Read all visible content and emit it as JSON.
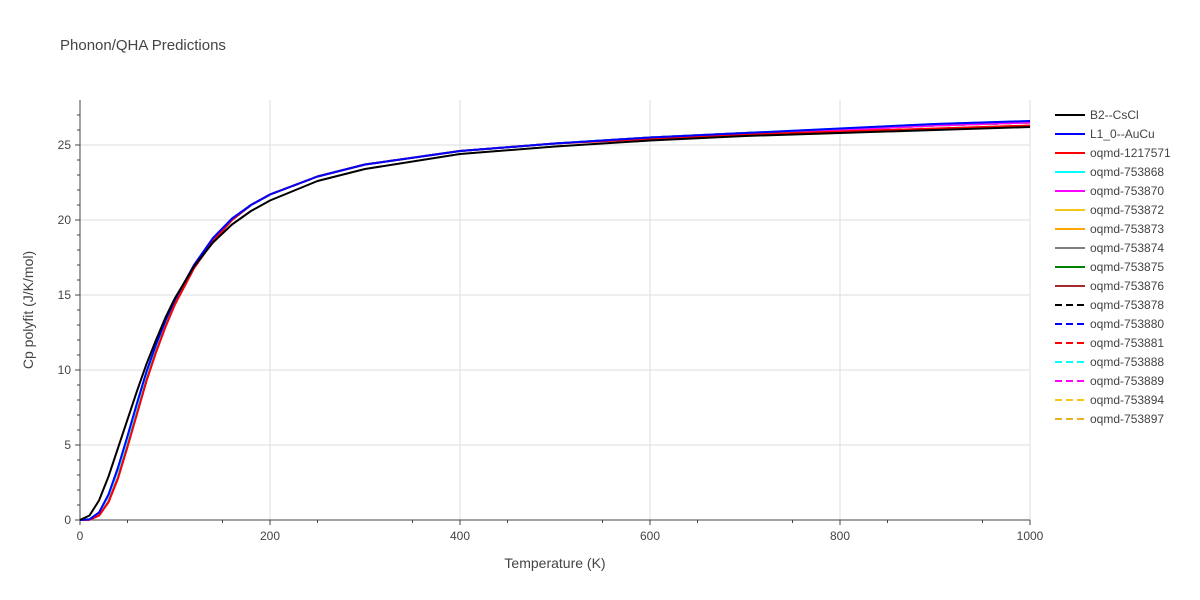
{
  "chart_data": {
    "type": "line",
    "title": "Phonon/QHA Predictions",
    "xlabel": "Temperature (K)",
    "ylabel": "Cp polyfit (J/K/mol)",
    "xlim": [
      0,
      1000
    ],
    "ylim": [
      0,
      28
    ],
    "x_ticks": [
      0,
      200,
      400,
      600,
      800,
      1000
    ],
    "y_ticks": [
      0,
      5,
      10,
      15,
      20,
      25
    ],
    "grid": true,
    "legend_position": "right",
    "x": [
      0,
      10,
      20,
      30,
      40,
      50,
      60,
      70,
      80,
      90,
      100,
      120,
      140,
      160,
      180,
      200,
      250,
      300,
      400,
      500,
      600,
      700,
      800,
      900,
      1000
    ],
    "series": [
      {
        "name": "B2--CsCl",
        "color": "#000000",
        "dash": "solid",
        "values": [
          0,
          0.3,
          1.3,
          2.9,
          4.8,
          6.7,
          8.6,
          10.4,
          12.0,
          13.5,
          14.8,
          16.9,
          18.5,
          19.7,
          20.6,
          21.3,
          22.6,
          23.4,
          24.4,
          24.9,
          25.3,
          25.6,
          25.8,
          26.0,
          26.2
        ]
      },
      {
        "name": "L1_0--AuCu",
        "color": "#0000ff",
        "dash": "solid",
        "values": [
          0,
          0.05,
          0.5,
          1.7,
          3.5,
          5.6,
          7.8,
          9.9,
          11.7,
          13.3,
          14.7,
          17.0,
          18.8,
          20.1,
          21.0,
          21.7,
          22.9,
          23.7,
          24.6,
          25.1,
          25.5,
          25.8,
          26.1,
          26.4,
          26.6
        ]
      },
      {
        "name": "oqmd-1217571",
        "color": "#ff0000",
        "dash": "solid",
        "values": [
          0,
          0.02,
          0.3,
          1.2,
          2.8,
          4.9,
          7.1,
          9.3,
          11.2,
          12.9,
          14.4,
          16.8,
          18.6,
          20.0,
          21.0,
          21.7,
          22.9,
          23.7,
          24.6,
          25.1,
          25.4,
          25.7,
          25.9,
          26.1,
          26.3
        ]
      },
      {
        "name": "oqmd-753868",
        "color": "#00ffff",
        "dash": "solid",
        "values": [
          0,
          0.04,
          0.45,
          1.6,
          3.3,
          5.3,
          7.5,
          9.6,
          11.5,
          13.1,
          14.6,
          16.9,
          18.7,
          20.0,
          21.0,
          21.7,
          22.9,
          23.7,
          24.6,
          25.1,
          25.5,
          25.8,
          26.1,
          26.4,
          26.6
        ]
      },
      {
        "name": "oqmd-753870",
        "color": "#ff00ff",
        "dash": "solid",
        "values": [
          0,
          0.02,
          0.3,
          1.2,
          2.8,
          4.9,
          7.1,
          9.3,
          11.2,
          12.9,
          14.4,
          16.8,
          18.6,
          20.0,
          21.0,
          21.7,
          22.9,
          23.7,
          24.6,
          25.1,
          25.5,
          25.8,
          26.0,
          26.3,
          26.5
        ]
      },
      {
        "name": "oqmd-753872",
        "color": "#f5c518",
        "dash": "solid",
        "values": [
          0,
          0.02,
          0.3,
          1.2,
          2.8,
          4.9,
          7.1,
          9.3,
          11.2,
          12.9,
          14.4,
          16.8,
          18.6,
          20.0,
          21.0,
          21.7,
          22.9,
          23.7,
          24.6,
          25.1,
          25.5,
          25.8,
          26.0,
          26.3,
          26.5
        ]
      },
      {
        "name": "oqmd-753873",
        "color": "#ffa500",
        "dash": "solid",
        "values": [
          0,
          0.02,
          0.3,
          1.2,
          2.8,
          4.9,
          7.1,
          9.3,
          11.2,
          12.9,
          14.4,
          16.8,
          18.6,
          20.0,
          21.0,
          21.7,
          22.9,
          23.7,
          24.6,
          25.1,
          25.5,
          25.8,
          26.0,
          26.3,
          26.5
        ]
      },
      {
        "name": "oqmd-753874",
        "color": "#808080",
        "dash": "solid",
        "values": [
          0,
          0.02,
          0.3,
          1.2,
          2.8,
          4.9,
          7.1,
          9.3,
          11.2,
          12.9,
          14.4,
          16.8,
          18.6,
          20.0,
          21.0,
          21.7,
          22.9,
          23.7,
          24.6,
          25.1,
          25.5,
          25.8,
          26.0,
          26.3,
          26.5
        ]
      },
      {
        "name": "oqmd-753875",
        "color": "#008000",
        "dash": "solid",
        "values": [
          0,
          0.02,
          0.3,
          1.2,
          2.8,
          4.9,
          7.1,
          9.3,
          11.2,
          12.9,
          14.4,
          16.8,
          18.6,
          20.0,
          21.0,
          21.7,
          22.9,
          23.7,
          24.6,
          25.1,
          25.5,
          25.8,
          26.0,
          26.3,
          26.5
        ]
      },
      {
        "name": "oqmd-753876",
        "color": "#a52a2a",
        "dash": "solid",
        "values": [
          0,
          0.02,
          0.3,
          1.2,
          2.8,
          4.9,
          7.1,
          9.3,
          11.2,
          12.9,
          14.4,
          16.8,
          18.6,
          20.0,
          21.0,
          21.7,
          22.9,
          23.7,
          24.6,
          25.1,
          25.5,
          25.8,
          26.0,
          26.3,
          26.5
        ]
      },
      {
        "name": "oqmd-753878",
        "color": "#000000",
        "dash": "dash",
        "values": [
          0,
          0.02,
          0.3,
          1.2,
          2.8,
          4.9,
          7.1,
          9.3,
          11.2,
          12.9,
          14.4,
          16.8,
          18.6,
          20.0,
          21.0,
          21.7,
          22.9,
          23.7,
          24.6,
          25.1,
          25.5,
          25.8,
          26.0,
          26.3,
          26.5
        ]
      },
      {
        "name": "oqmd-753880",
        "color": "#0000ff",
        "dash": "dash",
        "values": [
          0,
          0.02,
          0.3,
          1.2,
          2.8,
          4.9,
          7.1,
          9.3,
          11.2,
          12.9,
          14.4,
          16.8,
          18.6,
          20.0,
          21.0,
          21.7,
          22.9,
          23.7,
          24.6,
          25.1,
          25.5,
          25.8,
          26.0,
          26.3,
          26.5
        ]
      },
      {
        "name": "oqmd-753881",
        "color": "#ff0000",
        "dash": "dash",
        "values": [
          0,
          0.02,
          0.3,
          1.2,
          2.8,
          4.9,
          7.1,
          9.3,
          11.2,
          12.9,
          14.4,
          16.8,
          18.6,
          20.0,
          21.0,
          21.7,
          22.9,
          23.7,
          24.6,
          25.1,
          25.5,
          25.8,
          26.0,
          26.3,
          26.5
        ]
      },
      {
        "name": "oqmd-753888",
        "color": "#00ffff",
        "dash": "dash",
        "values": [
          0,
          0.02,
          0.3,
          1.2,
          2.8,
          4.9,
          7.1,
          9.3,
          11.2,
          12.9,
          14.4,
          16.8,
          18.6,
          20.0,
          21.0,
          21.7,
          22.9,
          23.7,
          24.6,
          25.1,
          25.5,
          25.8,
          26.0,
          26.3,
          26.5
        ]
      },
      {
        "name": "oqmd-753889",
        "color": "#ff00ff",
        "dash": "dash",
        "values": [
          0,
          0.02,
          0.3,
          1.2,
          2.8,
          4.9,
          7.1,
          9.3,
          11.2,
          12.9,
          14.4,
          16.8,
          18.6,
          20.0,
          21.0,
          21.7,
          22.9,
          23.7,
          24.6,
          25.1,
          25.5,
          25.8,
          26.0,
          26.3,
          26.5
        ]
      },
      {
        "name": "oqmd-753894",
        "color": "#f5c518",
        "dash": "dash",
        "values": [
          0,
          0.02,
          0.3,
          1.2,
          2.8,
          4.9,
          7.1,
          9.3,
          11.2,
          12.9,
          14.4,
          16.8,
          18.6,
          20.0,
          21.0,
          21.7,
          22.9,
          23.7,
          24.6,
          25.1,
          25.5,
          25.8,
          26.0,
          26.3,
          26.5
        ]
      },
      {
        "name": "oqmd-753897",
        "color": "#e6b422",
        "dash": "dash",
        "values": [
          0,
          0.02,
          0.3,
          1.2,
          2.8,
          4.9,
          7.1,
          9.3,
          11.2,
          12.9,
          14.4,
          16.8,
          18.6,
          20.0,
          21.0,
          21.7,
          22.9,
          23.7,
          24.6,
          25.1,
          25.5,
          25.8,
          26.0,
          26.3,
          26.5
        ]
      }
    ]
  }
}
